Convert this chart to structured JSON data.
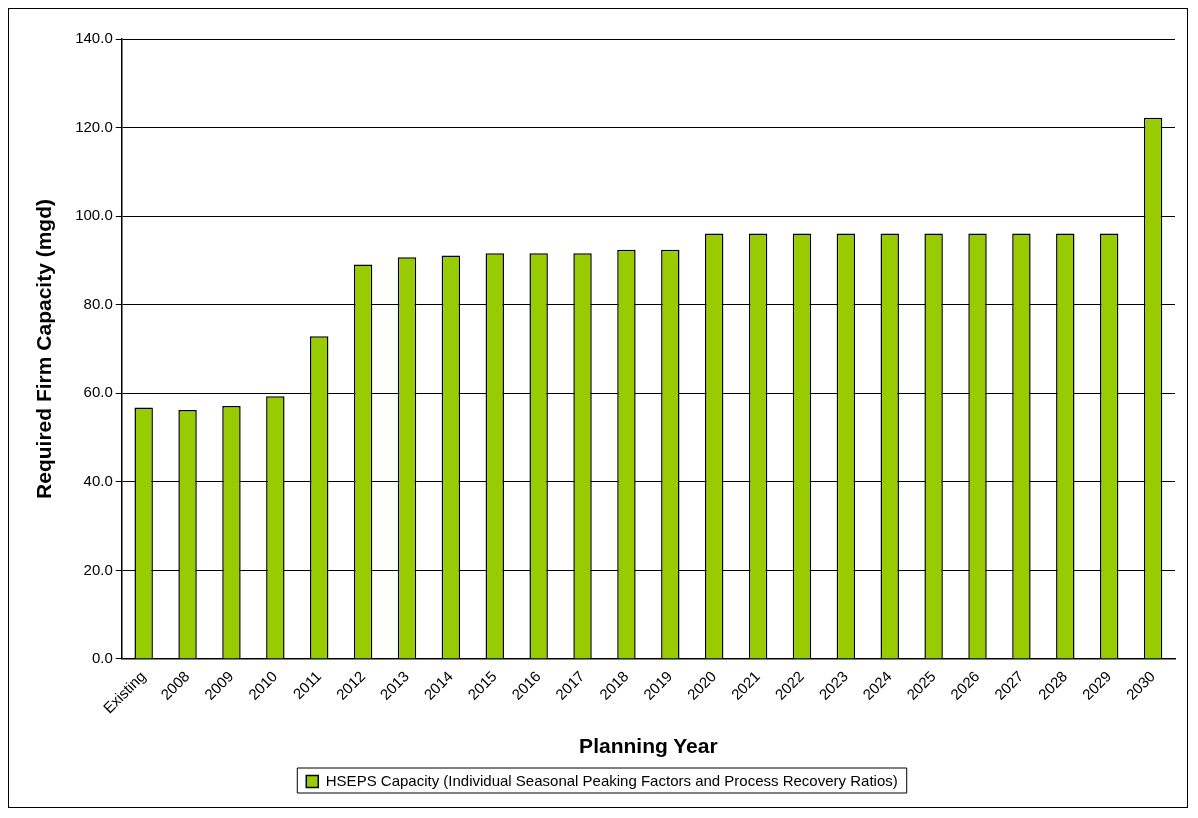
{
  "chart_data": {
    "type": "bar",
    "xlabel": "Planning Year",
    "ylabel": "Required Firm Capacity (mgd)",
    "categories": [
      "Existing",
      "2008",
      "2009",
      "2010",
      "2011",
      "2012",
      "2013",
      "2014",
      "2015",
      "2016",
      "2017",
      "2018",
      "2019",
      "2020",
      "2021",
      "2022",
      "2023",
      "2024",
      "2025",
      "2026",
      "2027",
      "2028",
      "2029",
      "2030"
    ],
    "series": [
      {
        "name": "HSEPS Capacity (Individual Seasonal Peaking Factors and Process Recovery Ratios)",
        "color": "#99cc00",
        "values": [
          56.8,
          56.2,
          57.1,
          59.3,
          72.9,
          89.1,
          90.7,
          91.1,
          91.6,
          91.6,
          91.6,
          92.4,
          92.4,
          96.1,
          96.1,
          96.1,
          96.1,
          96.1,
          96.1,
          96.1,
          96.1,
          96.1,
          96.1,
          122.2
        ]
      }
    ],
    "ylim": [
      0,
      140
    ],
    "yticks": [
      {
        "value": 0,
        "label": "0.0"
      },
      {
        "value": 20,
        "label": "20.0"
      },
      {
        "value": 40,
        "label": "40.0"
      },
      {
        "value": 60,
        "label": "60.0"
      },
      {
        "value": 80,
        "label": "80.0"
      },
      {
        "value": 100,
        "label": "100.0"
      },
      {
        "value": 120,
        "label": "120.0"
      },
      {
        "value": 140,
        "label": "140.0"
      }
    ],
    "grid": "y",
    "legend": "bottom"
  }
}
